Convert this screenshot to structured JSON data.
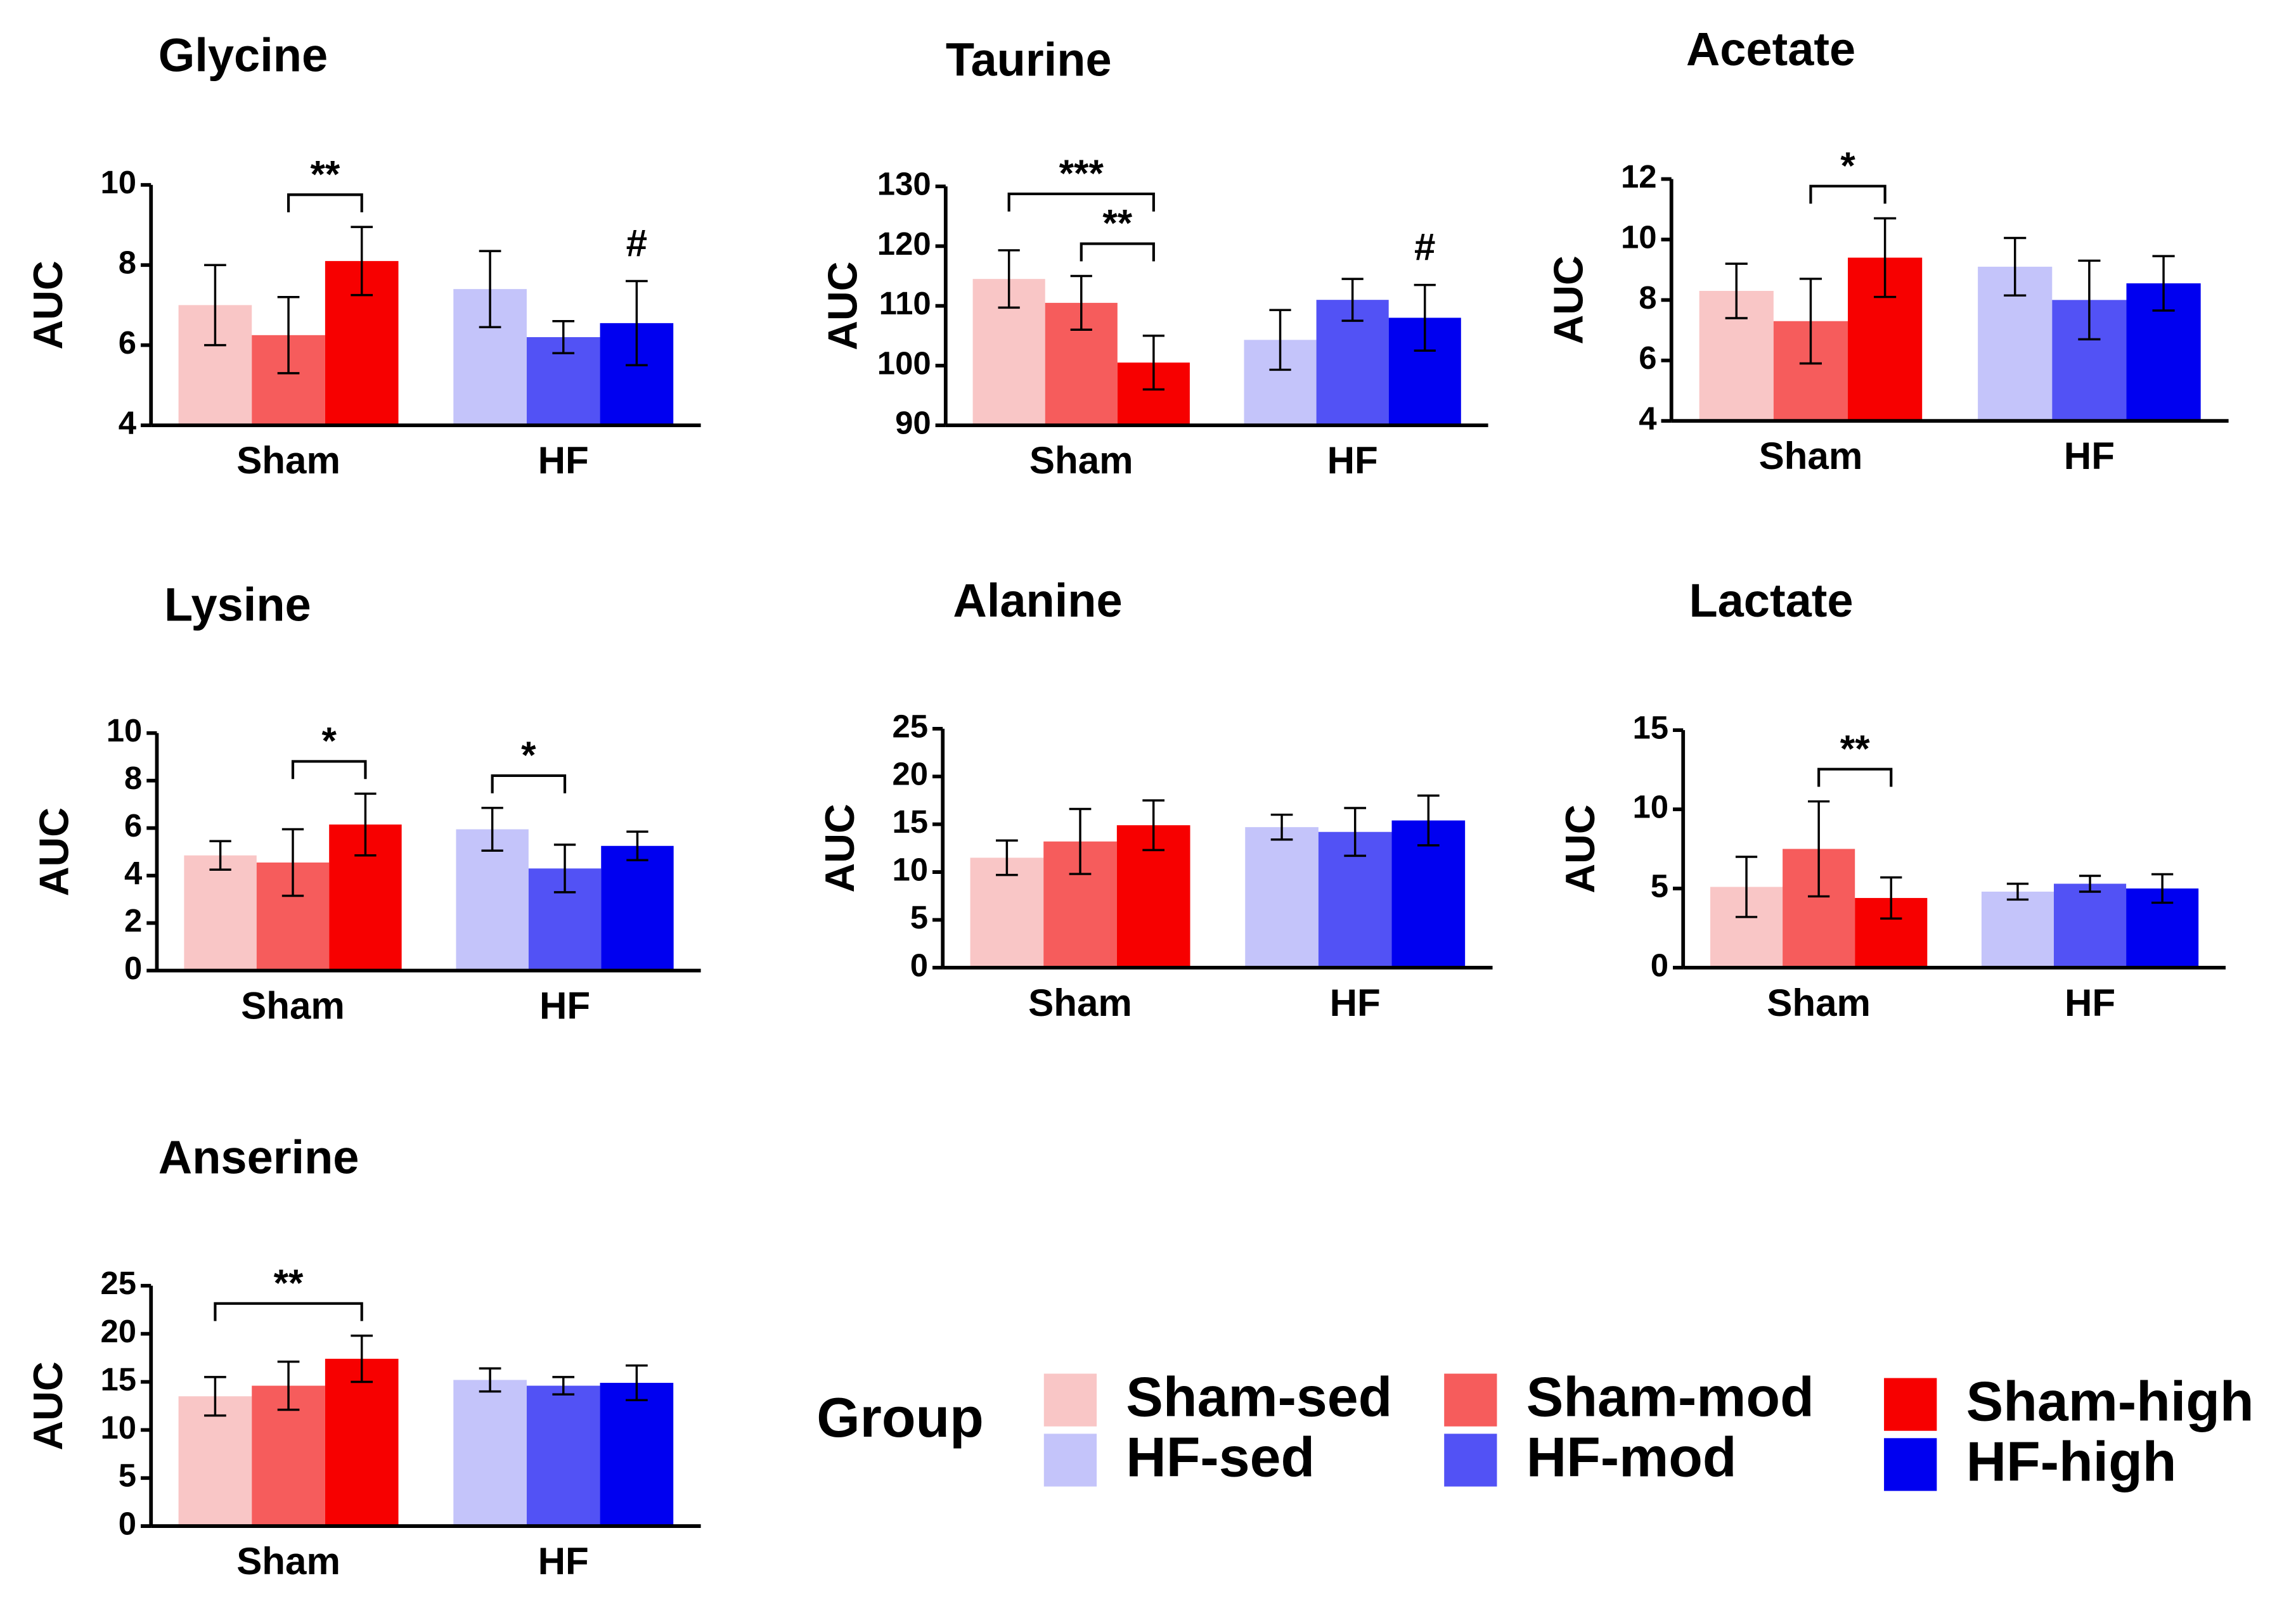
{
  "legend": {
    "title": "Group",
    "groups": [
      {
        "name": "Sham-sed",
        "color": "#f9c6c6"
      },
      {
        "name": "Sham-mod",
        "color": "#f65c5c"
      },
      {
        "name": "Sham-high",
        "color": "#f70000"
      },
      {
        "name": "HF-sed",
        "color": "#c4c4fa"
      },
      {
        "name": "HF-mod",
        "color": "#5252f5"
      },
      {
        "name": "HF-high",
        "color": "#0000f0"
      }
    ]
  },
  "chart_data": [
    {
      "type": "bar",
      "title": "Glycine",
      "ylabel": "AUC",
      "categories": [
        "Sham",
        "HF"
      ],
      "ylim": [
        4,
        10
      ],
      "yticks": [
        4,
        6,
        8,
        10
      ],
      "series": [
        {
          "values": [
            7.0,
            null
          ],
          "errors": [
            1.0,
            null
          ]
        },
        {
          "values": [
            6.25,
            null
          ],
          "errors": [
            0.95,
            null
          ]
        },
        {
          "values": [
            8.1,
            null
          ],
          "errors": [
            0.85,
            null
          ]
        },
        {
          "values": [
            null,
            7.4
          ],
          "errors": [
            null,
            0.95
          ]
        },
        {
          "values": [
            null,
            6.2
          ],
          "errors": [
            null,
            0.4
          ]
        },
        {
          "values": [
            null,
            6.55
          ],
          "errors": [
            null,
            1.05
          ]
        }
      ],
      "brackets": [
        {
          "label": "**",
          "between": [
            1,
            2
          ]
        }
      ],
      "marks": [
        {
          "label": "#",
          "series": 5
        }
      ]
    },
    {
      "type": "bar",
      "title": "Taurine",
      "ylabel": "AUC",
      "categories": [
        "Sham",
        "HF"
      ],
      "ylim": [
        90,
        130
      ],
      "yticks": [
        90,
        100,
        110,
        120,
        130
      ],
      "series": [
        {
          "values": [
            114.5,
            null
          ],
          "errors": [
            4.8,
            null
          ]
        },
        {
          "values": [
            110.5,
            null
          ],
          "errors": [
            4.5,
            null
          ]
        },
        {
          "values": [
            100.5,
            null
          ],
          "errors": [
            4.5,
            null
          ]
        },
        {
          "values": [
            null,
            104.3
          ],
          "errors": [
            null,
            5
          ]
        },
        {
          "values": [
            null,
            111
          ],
          "errors": [
            null,
            3.5
          ]
        },
        {
          "values": [
            null,
            108
          ],
          "errors": [
            null,
            5.5
          ]
        }
      ],
      "brackets": [
        {
          "label": "***",
          "between": [
            0,
            2
          ]
        },
        {
          "label": "**",
          "between": [
            1,
            2
          ]
        }
      ],
      "marks": [
        {
          "label": "#",
          "series": 5
        }
      ]
    },
    {
      "type": "bar",
      "title": "Acetate",
      "ylabel": "AUC",
      "categories": [
        "Sham",
        "HF"
      ],
      "ylim": [
        4,
        12
      ],
      "yticks": [
        4,
        6,
        8,
        10,
        12
      ],
      "series": [
        {
          "values": [
            8.3,
            null
          ],
          "errors": [
            0.9,
            null
          ]
        },
        {
          "values": [
            7.3,
            null
          ],
          "errors": [
            1.4,
            null
          ]
        },
        {
          "values": [
            9.4,
            null
          ],
          "errors": [
            1.3,
            null
          ]
        },
        {
          "values": [
            null,
            9.1
          ],
          "errors": [
            null,
            0.95
          ]
        },
        {
          "values": [
            null,
            8.0
          ],
          "errors": [
            null,
            1.3
          ]
        },
        {
          "values": [
            null,
            8.55
          ],
          "errors": [
            null,
            0.9
          ]
        }
      ],
      "brackets": [
        {
          "label": "*",
          "between": [
            1,
            2
          ]
        }
      ],
      "marks": []
    },
    {
      "type": "bar",
      "title": "Lysine",
      "ylabel": "AUC",
      "categories": [
        "Sham",
        "HF"
      ],
      "ylim": [
        0,
        10
      ],
      "yticks": [
        0,
        2,
        4,
        6,
        8,
        10
      ],
      "series": [
        {
          "values": [
            4.85,
            null
          ],
          "errors": [
            0.6,
            null
          ]
        },
        {
          "values": [
            4.55,
            null
          ],
          "errors": [
            1.4,
            null
          ]
        },
        {
          "values": [
            6.15,
            null
          ],
          "errors": [
            1.3,
            null
          ]
        },
        {
          "values": [
            null,
            5.95
          ],
          "errors": [
            null,
            0.9
          ]
        },
        {
          "values": [
            null,
            4.3
          ],
          "errors": [
            null,
            1.0
          ]
        },
        {
          "values": [
            null,
            5.25
          ],
          "errors": [
            null,
            0.6
          ]
        }
      ],
      "brackets": [
        {
          "label": "*",
          "between": [
            1,
            2
          ]
        },
        {
          "label": "*",
          "between": [
            3,
            4
          ]
        }
      ],
      "marks": []
    },
    {
      "type": "bar",
      "title": "Alanine",
      "ylabel": "AUC",
      "categories": [
        "Sham",
        "HF"
      ],
      "ylim": [
        0,
        25
      ],
      "yticks": [
        0,
        5,
        10,
        15,
        20,
        25
      ],
      "series": [
        {
          "values": [
            11.5,
            null
          ],
          "errors": [
            1.8,
            null
          ]
        },
        {
          "values": [
            13.2,
            null
          ],
          "errors": [
            3.4,
            null
          ]
        },
        {
          "values": [
            14.9,
            null
          ],
          "errors": [
            2.6,
            null
          ]
        },
        {
          "values": [
            null,
            14.7
          ],
          "errors": [
            null,
            1.3
          ]
        },
        {
          "values": [
            null,
            14.2
          ],
          "errors": [
            null,
            2.5
          ]
        },
        {
          "values": [
            null,
            15.4
          ],
          "errors": [
            null,
            2.6
          ]
        }
      ],
      "brackets": [],
      "marks": []
    },
    {
      "type": "bar",
      "title": "Lactate",
      "ylabel": "AUC",
      "categories": [
        "Sham",
        "HF"
      ],
      "ylim": [
        0,
        15
      ],
      "yticks": [
        0,
        5,
        10,
        15
      ],
      "series": [
        {
          "values": [
            5.1,
            null
          ],
          "errors": [
            1.9,
            null
          ]
        },
        {
          "values": [
            7.5,
            null
          ],
          "errors": [
            3,
            null
          ]
        },
        {
          "values": [
            4.4,
            null
          ],
          "errors": [
            1.3,
            null
          ]
        },
        {
          "values": [
            null,
            4.8
          ],
          "errors": [
            null,
            0.5
          ]
        },
        {
          "values": [
            null,
            5.3
          ],
          "errors": [
            null,
            0.5
          ]
        },
        {
          "values": [
            null,
            5.0
          ],
          "errors": [
            null,
            0.9
          ]
        }
      ],
      "brackets": [
        {
          "label": "**",
          "between": [
            1,
            2
          ]
        }
      ],
      "marks": []
    },
    {
      "type": "bar",
      "title": "Anserine",
      "ylabel": "AUC",
      "categories": [
        "Sham",
        "HF"
      ],
      "ylim": [
        0,
        25
      ],
      "yticks": [
        0,
        5,
        10,
        15,
        20,
        25
      ],
      "series": [
        {
          "values": [
            13.5,
            null
          ],
          "errors": [
            2,
            null
          ]
        },
        {
          "values": [
            14.6,
            null
          ],
          "errors": [
            2.5,
            null
          ]
        },
        {
          "values": [
            17.4,
            null
          ],
          "errors": [
            2.4,
            null
          ]
        },
        {
          "values": [
            null,
            15.2
          ],
          "errors": [
            null,
            1.2
          ]
        },
        {
          "values": [
            null,
            14.6
          ],
          "errors": [
            null,
            0.9
          ]
        },
        {
          "values": [
            null,
            14.9
          ],
          "errors": [
            null,
            1.8
          ]
        }
      ],
      "brackets": [
        {
          "label": "**",
          "between": [
            0,
            2
          ]
        }
      ],
      "marks": []
    }
  ]
}
